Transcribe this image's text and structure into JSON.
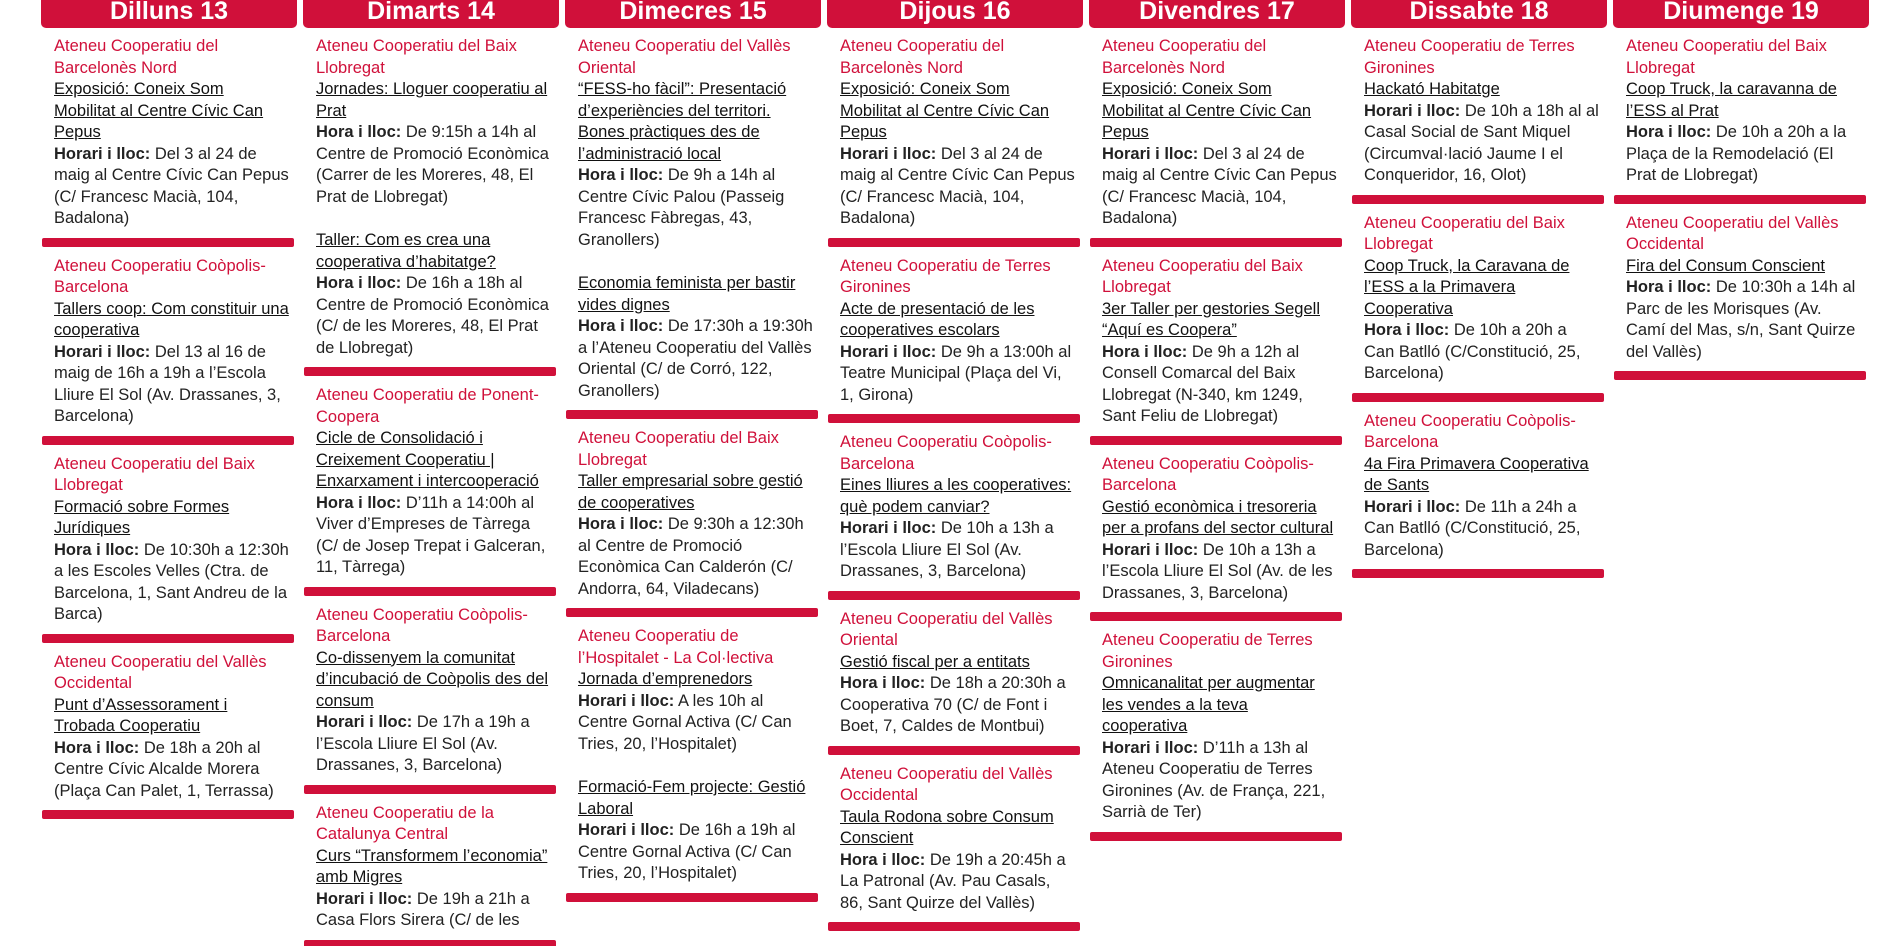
{
  "days": [
    {
      "name": "Dilluns 13",
      "groups": [
        {
          "org": "Ateneu Cooperatiu del Barcelonès Nord",
          "events": [
            {
              "title": "Exposició: Coneix Som Mobilitat al Centre Cívic Can Pepus",
              "label": "Horari i lloc:",
              "text": "Del 3 al 24 de maig al Centre Cívic Can Pepus (C/ Francesc Macià, 104, Badalona)"
            }
          ]
        },
        {
          "org": "Ateneu Cooperatiu Coòpolis-Barcelona",
          "events": [
            {
              "title": "Tallers coop: Com constituir una cooperativa",
              "label": "Horari i lloc:",
              "text": "Del 13 al 16 de maig de 16h a 19h a l’Escola Lliure El Sol  (Av. Drassanes, 3, Barcelona)"
            }
          ]
        },
        {
          "org": "Ateneu Cooperatiu del Baix Llobregat",
          "events": [
            {
              "title": "Formació sobre Formes Jurídiques",
              "label": "Hora i lloc:",
              "text": "De 10:30h a 12:30h a les Escoles Velles (Ctra. de Barcelona, 1, Sant Andreu de la Barca)"
            }
          ]
        },
        {
          "org": "Ateneu Cooperatiu del Vallès Occidental",
          "events": [
            {
              "title": "Punt d’Assessorament i Trobada Cooperatiu",
              "label": "Hora i lloc:",
              "text": "De 18h a 20h al Centre Cívic Alcalde Morera (Plaça Can Palet, 1, Terrassa)"
            }
          ]
        }
      ]
    },
    {
      "name": "Dimarts 14",
      "groups": [
        {
          "org": "Ateneu Cooperatiu del Baix Llobregat",
          "events": [
            {
              "title": "Jornades: Lloguer cooperatiu al Prat",
              "label": "Hora i lloc:",
              "text": "De 9:15h a 14h al Centre de Promoció Econòmica (Carrer de les Moreres, 48, El Prat de Llobregat)"
            },
            {
              "title": "Taller: Com es crea una cooperativa d’habitatge?",
              "label": "Hora i lloc:",
              "text": "De 16h a 18h al Centre de Promoció Econòmica (C/ de les Moreres, 48, El Prat de Llobregat)"
            }
          ]
        },
        {
          "org": "Ateneu Cooperatiu de Ponent-Coopera",
          "events": [
            {
              "title": "Cicle de Consolidació i Creixement Cooperatiu | Enxarxament i intercooperació",
              "label": "Hora i lloc:",
              "text": "D’11h a 14:00h al Viver d’Empreses de Tàrrega (C/ de Josep Trepat i Galceran, 11, Tàrrega)"
            }
          ]
        },
        {
          "org": "Ateneu Cooperatiu Coòpolis-Barcelona",
          "events": [
            {
              "title": "Co-dissenyem la comunitat d’incubació de Coòpolis des del consum",
              "label": "Horari i lloc:",
              "text": "De 17h a 19h a l’Escola Lliure El Sol  (Av. Drassanes, 3, Barcelona)"
            }
          ]
        },
        {
          "org": "Ateneu Cooperatiu de la Catalunya Central",
          "events": [
            {
              "title": "Curs “Transformem l’economia” amb Migres",
              "label": "Horari i lloc:",
              "text": "De 19h a 21h a Casa Flors Sirera (C/ de les"
            }
          ]
        }
      ]
    },
    {
      "name": "Dimecres 15",
      "groups": [
        {
          "org": "Ateneu Cooperatiu del Vallès Oriental",
          "events": [
            {
              "title": "“FESS-ho fàcil”: Presentació d’experiències del territori. Bones pràctiques des de l’administració local",
              "label": "Hora i lloc:",
              "text": "De 9h a 14h al Centre Cívic Palou (Passeig Francesc Fàbregas, 43, Granollers)"
            },
            {
              "title": "Economia feminista per bastir vides dignes",
              "label": "Hora i lloc:",
              "text": "De 17:30h a 19:30h a l’Ateneu Cooperatiu del Vallès Oriental (C/ de Corró, 122, Granollers)"
            }
          ]
        },
        {
          "org": "Ateneu Cooperatiu del Baix Llobregat",
          "events": [
            {
              "title": "Taller empresarial sobre gestió de cooperatives",
              "label": "Hora i lloc:",
              "text": "De 9:30h a 12:30h al Centre de Promoció Econòmica Can Calderón (C/ Andorra, 64, Viladecans)"
            }
          ]
        },
        {
          "org": "Ateneu Cooperatiu de l’Hospitalet - La Col·lectiva",
          "events": [
            {
              "title": "Jornada d’emprenedors",
              "label": "Horari i lloc:",
              "text": "A les 10h al Centre Gornal Activa (C/ Can Tries, 20, l’Hospitalet)"
            },
            {
              "title": "Formació-Fem projecte: Gestió Laboral",
              "label": "Horari i lloc:",
              "text": "De 16h a 19h al Centre Gornal Activa (C/ Can Tries, 20, l’Hospitalet)"
            }
          ]
        }
      ]
    },
    {
      "name": "Dijous 16",
      "groups": [
        {
          "org": "Ateneu Cooperatiu del Barcelonès Nord",
          "events": [
            {
              "title": "Exposició: Coneix Som Mobilitat al Centre Cívic Can Pepus",
              "label": "Horari i lloc:",
              "text": "Del 3 al 24 de maig al Centre Cívic Can Pepus (C/ Francesc Macià, 104, Badalona)"
            }
          ]
        },
        {
          "org": "Ateneu Cooperatiu de Terres Gironines",
          "events": [
            {
              "title": "Acte de presentació de les cooperatives escolars",
              "label": "Horari i lloc:",
              "text": "De 9h a 13:00h al Teatre Municipal (Plaça del Vi, 1, Girona)"
            }
          ]
        },
        {
          "org": "Ateneu Cooperatiu Coòpolis-Barcelona",
          "events": [
            {
              "title": "Eines lliures a les cooperatives: què podem canviar?",
              "label": "Horari i lloc:",
              "text": "De 10h a 13h a l’Escola Lliure El Sol  (Av. Drassanes, 3, Barcelona)"
            }
          ]
        },
        {
          "org": "Ateneu Cooperatiu del Vallès Oriental",
          "events": [
            {
              "title": "Gestió fiscal per a entitats",
              "label": "Hora i lloc:",
              "text": "De 18h a 20:30h a Cooperativa 70 (C/ de Font i Boet, 7, Caldes de Montbui)"
            }
          ]
        },
        {
          "org": "Ateneu Cooperatiu del Vallès Occidental",
          "events": [
            {
              "title": "Taula Rodona sobre Consum Conscient",
              "label": "Hora i lloc:",
              "text": "De 19h a 20:45h a La Patronal (Av. Pau Casals, 86, Sant Quirze del Vallès)"
            }
          ]
        }
      ]
    },
    {
      "name": "Divendres 17",
      "groups": [
        {
          "org": "Ateneu Cooperatiu del Barcelonès Nord",
          "events": [
            {
              "title": "Exposició: Coneix Som Mobilitat al Centre Cívic Can Pepus",
              "label": "Horari i lloc:",
              "text": "Del 3 al 24 de maig al Centre Cívic Can Pepus (C/ Francesc Macià, 104, Badalona)"
            }
          ]
        },
        {
          "org": "Ateneu Cooperatiu del Baix Llobregat",
          "events": [
            {
              "title": "3er Taller per gestories Segell “Aquí es Coopera”",
              "label": "Hora i lloc:",
              "text": "De 9h a 12h al Consell Comarcal del Baix Llobregat (N-340, km 1249, Sant Feliu de Llobregat)"
            }
          ]
        },
        {
          "org": "Ateneu Cooperatiu Coòpolis-Barcelona",
          "events": [
            {
              "title": "Gestió econòmica i tresoreria per a profans del sector cultural",
              "label": "Horari i lloc:",
              "text": "De 10h a 13h a l’Escola Lliure El Sol (Av. de les Drassanes, 3, Barcelona)"
            }
          ]
        },
        {
          "org": "Ateneu Cooperatiu de Terres Gironines",
          "events": [
            {
              "title": "Omnicanalitat per augmentar les vendes a la teva cooperativa",
              "label": "Horari i lloc:",
              "text": "D’11h a 13h al Ateneu Cooperatiu de Terres Gironines (Av. de França, 221, Sarrià de Ter)"
            }
          ]
        }
      ]
    },
    {
      "name": "Dissabte 18",
      "groups": [
        {
          "org": "Ateneu Cooperatiu de Terres Gironines",
          "events": [
            {
              "title": "Hackató Habitatge",
              "label": "Horari i lloc:",
              "text": "De 10h a 18h al al Casal Social de Sant Miquel (Circumval·lació Jaume I el Conqueridor, 16, Olot)"
            }
          ]
        },
        {
          "org": "Ateneu Cooperatiu del Baix Llobregat",
          "events": [
            {
              "title": "Coop Truck, la Caravana de l’ESS a la Primavera Cooperativa",
              "label": "Hora i lloc:",
              "text": "De 10h a 20h a Can Batlló (C/Constitució, 25, Barcelona)"
            }
          ]
        },
        {
          "org": "Ateneu Cooperatiu Coòpolis-Barcelona",
          "events": [
            {
              "title": "4a Fira Primavera Cooperativa de Sants",
              "label": "Horari i lloc:",
              "text": "De 11h a 24h a Can Batlló (C/Constitució, 25, Barcelona)"
            }
          ]
        }
      ]
    },
    {
      "name": "Diumenge 19",
      "groups": [
        {
          "org": "Ateneu Cooperatiu del Baix Llobregat",
          "events": [
            {
              "title": "Coop Truck, la caravanna de l’ESS al Prat",
              "label": "Hora i lloc:",
              "text": "De 10h a 20h a la Plaça de la Remodelació (El Prat de Llobregat)"
            }
          ]
        },
        {
          "org": "Ateneu Cooperatiu del Vallès Occidental",
          "events": [
            {
              "title": "Fira del Consum Conscient",
              "label": "Hora i lloc:",
              "text": "De 10:30h a 14h al Parc de les Morisques (Av. Camí del Mas, s/n, Sant Quirze del Vallès)"
            }
          ]
        }
      ]
    }
  ]
}
